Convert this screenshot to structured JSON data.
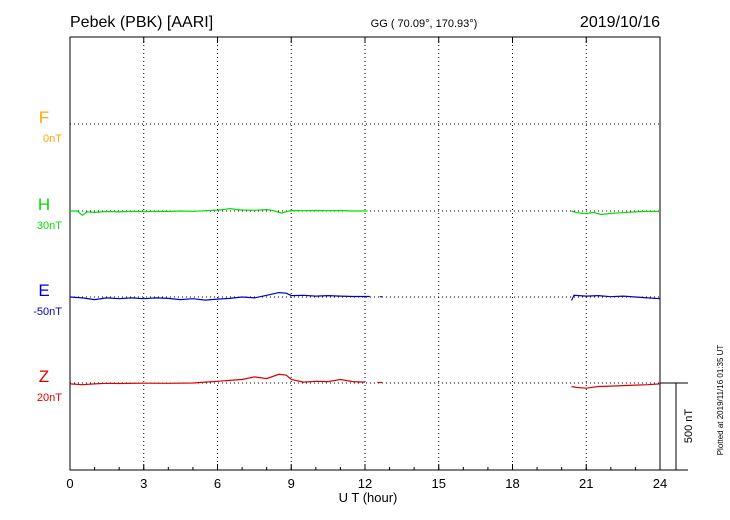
{
  "header": {
    "station": "Pebek (PBK)  [AARI]",
    "coords": "GG ( 70.09°, 170.93°)",
    "date": "2019/10/16"
  },
  "plotted_note": "Plotted at 2019/11/16 01:35 UT",
  "chart_data": {
    "type": "line",
    "title": "",
    "xlabel": "U T (hour)",
    "ylabel": "",
    "xlim": [
      0,
      24
    ],
    "xticks": [
      "0",
      "3",
      "6",
      "9",
      "12",
      "15",
      "18",
      "21",
      "24"
    ],
    "grid": true,
    "scale_bar": {
      "label": "500 nT",
      "value_nT": 500
    },
    "channels": [
      {
        "name": "F",
        "offset": "0nT",
        "color": "#ffa500",
        "segments": []
      },
      {
        "name": "H",
        "offset": "30nT",
        "color": "#00dd00",
        "segments": [
          [
            [
              0.0,
              0
            ],
            [
              0.3,
              0
            ],
            [
              0.5,
              -25
            ],
            [
              0.7,
              -5
            ],
            [
              1.0,
              -8
            ],
            [
              1.5,
              -3
            ],
            [
              2.0,
              -5
            ],
            [
              2.5,
              -2
            ],
            [
              3.0,
              -4
            ],
            [
              3.5,
              -2
            ],
            [
              4.0,
              -3
            ],
            [
              4.5,
              0
            ],
            [
              5.0,
              -2
            ],
            [
              5.5,
              2
            ],
            [
              6.0,
              5
            ],
            [
              6.3,
              10
            ],
            [
              6.5,
              14
            ],
            [
              6.8,
              8
            ],
            [
              7.0,
              6
            ],
            [
              7.5,
              4
            ],
            [
              8.0,
              8
            ],
            [
              8.3,
              2
            ],
            [
              8.6,
              -12
            ],
            [
              8.8,
              -4
            ],
            [
              9.0,
              3
            ],
            [
              9.5,
              2
            ],
            [
              10.0,
              3
            ],
            [
              10.5,
              2
            ],
            [
              11.0,
              3
            ],
            [
              11.5,
              0
            ],
            [
              12.1,
              0
            ]
          ],
          [
            [
              20.4,
              0
            ],
            [
              20.6,
              -10
            ],
            [
              21.0,
              -15
            ],
            [
              21.3,
              -8
            ],
            [
              21.6,
              -20
            ],
            [
              22.0,
              -14
            ],
            [
              22.5,
              -10
            ],
            [
              23.0,
              -5
            ],
            [
              23.5,
              -2
            ],
            [
              24.0,
              -3
            ]
          ]
        ]
      },
      {
        "name": "E",
        "offset": "-50nT",
        "color": "#0000cc",
        "segments": [
          [
            [
              0.0,
              0
            ],
            [
              0.5,
              -5
            ],
            [
              1.0,
              -15
            ],
            [
              1.5,
              -5
            ],
            [
              2.0,
              -10
            ],
            [
              2.5,
              -5
            ],
            [
              3.0,
              -10
            ],
            [
              3.5,
              -5
            ],
            [
              4.0,
              -8
            ],
            [
              4.5,
              -15
            ],
            [
              5.0,
              -10
            ],
            [
              5.5,
              -18
            ],
            [
              6.0,
              -12
            ],
            [
              6.5,
              -8
            ],
            [
              7.0,
              0
            ],
            [
              7.5,
              -5
            ],
            [
              8.0,
              10
            ],
            [
              8.5,
              25
            ],
            [
              8.8,
              22
            ],
            [
              9.0,
              8
            ],
            [
              9.5,
              10
            ],
            [
              10.0,
              5
            ],
            [
              10.5,
              8
            ],
            [
              11.0,
              5
            ],
            [
              11.5,
              3
            ],
            [
              12.2,
              3
            ]
          ],
          [
            [
              12.6,
              2
            ],
            [
              12.7,
              2
            ]
          ],
          [
            [
              20.4,
              -20
            ],
            [
              20.5,
              10
            ],
            [
              21.0,
              5
            ],
            [
              21.5,
              8
            ],
            [
              22.0,
              2
            ],
            [
              22.5,
              5
            ],
            [
              23.0,
              0
            ],
            [
              23.5,
              -5
            ],
            [
              24.0,
              -10
            ]
          ]
        ]
      },
      {
        "name": "Z",
        "offset": "20nT",
        "color": "#dd0000",
        "segments": [
          [
            [
              0.0,
              -5
            ],
            [
              0.5,
              -10
            ],
            [
              1.0,
              -5
            ],
            [
              1.5,
              -2
            ],
            [
              2.0,
              -3
            ],
            [
              3.0,
              -1
            ],
            [
              4.0,
              -2
            ],
            [
              5.0,
              0
            ],
            [
              5.5,
              5
            ],
            [
              6.0,
              10
            ],
            [
              6.5,
              15
            ],
            [
              7.0,
              20
            ],
            [
              7.5,
              35
            ],
            [
              8.0,
              25
            ],
            [
              8.5,
              50
            ],
            [
              8.8,
              45
            ],
            [
              9.0,
              20
            ],
            [
              9.5,
              5
            ],
            [
              10.0,
              10
            ],
            [
              10.5,
              8
            ],
            [
              11.0,
              20
            ],
            [
              11.5,
              8
            ],
            [
              12.0,
              5
            ]
          ],
          [
            [
              12.5,
              3
            ],
            [
              12.7,
              3
            ]
          ],
          [
            [
              20.4,
              -20
            ],
            [
              20.6,
              -25
            ],
            [
              21.0,
              -30
            ],
            [
              21.5,
              -20
            ],
            [
              22.0,
              -18
            ],
            [
              22.5,
              -15
            ],
            [
              23.0,
              -12
            ],
            [
              23.5,
              -10
            ],
            [
              24.0,
              -5
            ]
          ]
        ]
      }
    ]
  }
}
